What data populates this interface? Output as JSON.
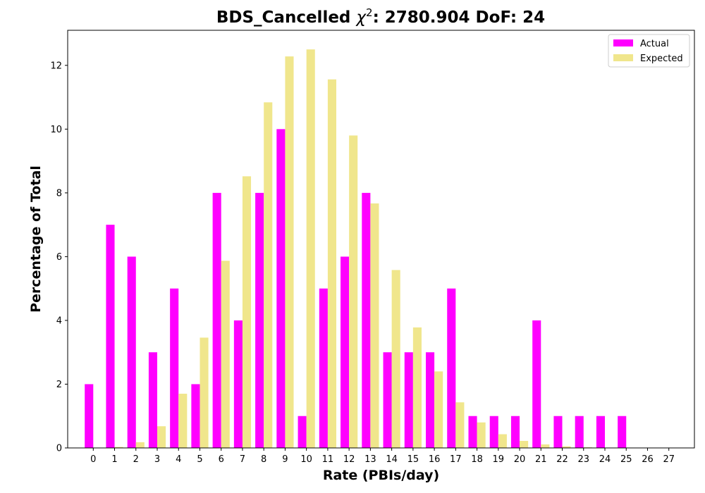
{
  "chart_data": {
    "type": "bar",
    "title": "BDS_Cancelled χ²: 2780.904 DoF: 24",
    "title_parts": {
      "prefix": "BDS_Cancelled ",
      "chi": "χ",
      "sup": "2",
      "suffix": ": 2780.904 DoF: 24"
    },
    "xlabel": "Rate (PBIs/day)",
    "ylabel": "Percentage of Total",
    "categories": [
      "0",
      "1",
      "2",
      "3",
      "4",
      "5",
      "6",
      "7",
      "8",
      "9",
      "10",
      "11",
      "12",
      "13",
      "14",
      "15",
      "16",
      "17",
      "18",
      "19",
      "20",
      "21",
      "22",
      "23",
      "24",
      "25",
      "26",
      "27"
    ],
    "series": [
      {
        "name": "Actual",
        "color": "#ff00ff",
        "values": [
          2,
          7,
          6,
          3,
          5,
          2,
          8,
          4,
          8,
          10,
          1,
          5,
          6,
          8,
          3,
          3,
          3,
          5,
          1,
          1,
          1,
          4,
          1,
          1,
          1,
          1,
          0,
          0
        ]
      },
      {
        "name": "Expected",
        "color": "#f0e68c",
        "values": [
          0,
          0.03,
          0.18,
          0.68,
          1.7,
          3.46,
          5.87,
          8.52,
          10.84,
          12.28,
          12.5,
          11.56,
          9.8,
          7.67,
          5.58,
          3.78,
          2.4,
          1.43,
          0.8,
          0.43,
          0.22,
          0.11,
          0.05,
          0.02,
          0.01,
          0,
          0,
          0
        ]
      }
    ],
    "ylim": [
      0,
      13.1
    ],
    "yticks": [
      0,
      2,
      4,
      6,
      8,
      10,
      12
    ],
    "grid": false,
    "legend_position": "top-right"
  }
}
